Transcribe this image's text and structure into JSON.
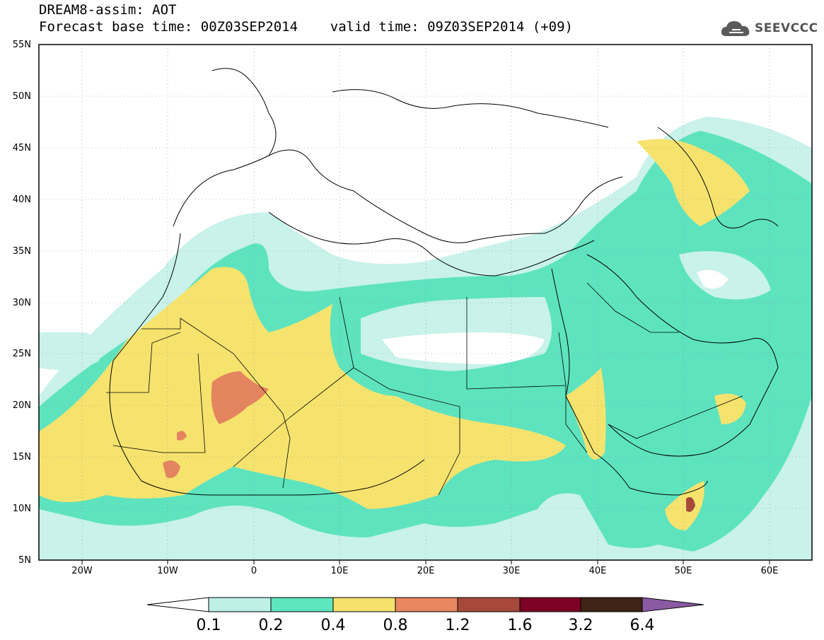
{
  "header": {
    "line1": "DREAM8-assim: AOT",
    "line2": "Forecast base time: 00Z03SEP2014    valid time: 09Z03SEP2014 (+09)"
  },
  "logo": {
    "text": "SEEVCCC",
    "icon": "cloud-icon"
  },
  "map": {
    "lat_labels": [
      "55N",
      "50N",
      "45N",
      "40N",
      "35N",
      "30N",
      "25N",
      "20N",
      "15N",
      "10N",
      "5N"
    ],
    "lon_labels": [
      "20W",
      "10W",
      "0",
      "10E",
      "20E",
      "30E",
      "40E",
      "50E",
      "60E"
    ]
  },
  "colorbar": {
    "labels": [
      "0.1",
      "0.2",
      "0.4",
      "0.8",
      "1.2",
      "1.6",
      "3.2",
      "6.4"
    ],
    "colors": [
      "#ffffff",
      "#bdf0e6",
      "#5ee6be",
      "#f5e16e",
      "#e8875f",
      "#a7493a",
      "#7d0025",
      "#3d2414",
      "#8a5aa3"
    ]
  },
  "field_colors": {
    "c01": "#c8f2ea",
    "c02": "#5ee3bf",
    "c04": "#f6e36e",
    "c08": "#e4855f",
    "c12": "#a7493a",
    "c16": "#7d0025"
  }
}
